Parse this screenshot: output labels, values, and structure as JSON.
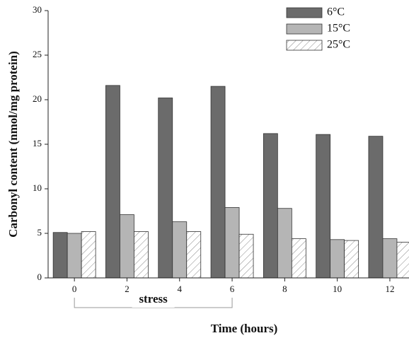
{
  "chart_data": {
    "type": "bar",
    "categories": [
      "0",
      "2",
      "4",
      "6",
      "8",
      "10",
      "12"
    ],
    "series": [
      {
        "name": "6°C",
        "color": "#6b6b6b",
        "hatch": false,
        "values": [
          5.1,
          21.6,
          20.2,
          21.5,
          16.2,
          16.1,
          15.9
        ]
      },
      {
        "name": "15°C",
        "color": "#b5b5b5",
        "hatch": false,
        "values": [
          5.0,
          7.1,
          6.3,
          7.9,
          7.8,
          4.3,
          4.4
        ]
      },
      {
        "name": "25°C",
        "color": "#ffffff",
        "hatch": true,
        "values": [
          5.2,
          5.2,
          5.2,
          4.9,
          4.4,
          4.2,
          4.0
        ]
      }
    ],
    "ylim": [
      0,
      30
    ],
    "yticks": [
      0,
      5,
      10,
      15,
      20,
      25,
      30
    ],
    "y_label": "Carbonyl content (nmol/mg protein)",
    "x_label": "Time (hours)",
    "annotations": [
      {
        "text": "stress",
        "from": "0",
        "to": "6"
      }
    ],
    "legend": "top-right"
  }
}
